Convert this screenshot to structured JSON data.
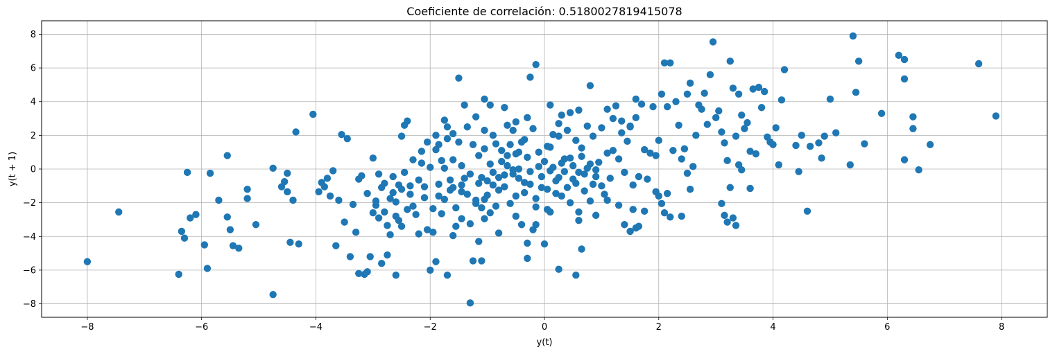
{
  "chart_data": {
    "type": "scatter",
    "title": "Coeficiente de correlación: 0.5180027819415078",
    "xlabel": "y(t)",
    "ylabel": "y(t + 1)",
    "xlim": [
      -8.8,
      8.8
    ],
    "ylim": [
      -8.8,
      8.8
    ],
    "xticks": [
      -8,
      -6,
      -4,
      -2,
      0,
      2,
      4,
      6,
      8
    ],
    "yticks": [
      -8,
      -6,
      -4,
      -2,
      0,
      2,
      4,
      6,
      8
    ],
    "grid": true,
    "marker_color": "#1f77b4",
    "points": [
      [
        -8.0,
        -5.5
      ],
      [
        -7.45,
        -2.55
      ],
      [
        -6.4,
        -6.25
      ],
      [
        -6.35,
        -3.7
      ],
      [
        -6.3,
        -4.1
      ],
      [
        -6.25,
        -0.2
      ],
      [
        -6.2,
        -2.9
      ],
      [
        -6.1,
        -2.7
      ],
      [
        -5.95,
        -4.5
      ],
      [
        -5.9,
        -5.9
      ],
      [
        -5.85,
        -0.25
      ],
      [
        -5.7,
        -1.85
      ],
      [
        -5.55,
        0.8
      ],
      [
        -5.55,
        -2.85
      ],
      [
        -5.5,
        -3.6
      ],
      [
        -5.45,
        -4.55
      ],
      [
        -5.35,
        -4.7
      ],
      [
        -5.2,
        -1.2
      ],
      [
        -5.2,
        -1.75
      ],
      [
        -5.05,
        -3.3
      ],
      [
        -4.75,
        -7.45
      ],
      [
        -4.75,
        0.05
      ],
      [
        -4.6,
        -1.05
      ],
      [
        -4.55,
        -0.75
      ],
      [
        -4.5,
        -0.25
      ],
      [
        -4.5,
        -1.35
      ],
      [
        -4.45,
        -4.35
      ],
      [
        -4.4,
        -1.85
      ],
      [
        -4.35,
        2.2
      ],
      [
        -4.3,
        -4.45
      ],
      [
        -4.05,
        3.25
      ],
      [
        -3.95,
        -1.35
      ],
      [
        -3.9,
        -0.8
      ],
      [
        -3.85,
        -1.05
      ],
      [
        -3.8,
        -0.55
      ],
      [
        -3.75,
        -1.6
      ],
      [
        -3.7,
        -0.1
      ],
      [
        -3.65,
        -4.55
      ],
      [
        -3.6,
        -1.85
      ],
      [
        -3.55,
        2.05
      ],
      [
        -3.5,
        -3.15
      ],
      [
        -3.45,
        1.8
      ],
      [
        -3.4,
        -5.2
      ],
      [
        -3.35,
        -2.1
      ],
      [
        -3.3,
        -3.75
      ],
      [
        -3.25,
        -6.2
      ],
      [
        -3.25,
        -0.6
      ],
      [
        -3.2,
        -0.4
      ],
      [
        -3.15,
        -6.25
      ],
      [
        -3.1,
        -1.45
      ],
      [
        -3.1,
        -6.1
      ],
      [
        -3.05,
        -5.2
      ],
      [
        -3.0,
        0.65
      ],
      [
        -2.95,
        -2.15
      ],
      [
        -2.9,
        -2.9
      ],
      [
        -2.85,
        -5.6
      ],
      [
        -2.8,
        -0.85
      ],
      [
        -2.75,
        -5.1
      ],
      [
        -2.65,
        -1.4
      ],
      [
        -2.6,
        -2.8
      ],
      [
        -2.55,
        -0.95
      ],
      [
        -2.5,
        1.95
      ],
      [
        -2.45,
        2.6
      ],
      [
        -2.4,
        2.85
      ],
      [
        -2.35,
        -1.0
      ],
      [
        -2.3,
        -2.2
      ],
      [
        -2.2,
        -3.85
      ],
      [
        -2.15,
        1.05
      ],
      [
        -2.1,
        -1.05
      ],
      [
        -2.05,
        -3.6
      ],
      [
        -2.0,
        -6.0
      ],
      [
        -1.95,
        -3.75
      ],
      [
        -1.9,
        -5.5
      ],
      [
        -1.85,
        -1.6
      ],
      [
        -1.8,
        -2.65
      ],
      [
        -1.75,
        2.9
      ],
      [
        -1.7,
        -6.3
      ],
      [
        -1.65,
        -1.25
      ],
      [
        -1.6,
        -1.1
      ],
      [
        -1.55,
        -3.4
      ],
      [
        -1.5,
        5.4
      ],
      [
        -1.45,
        -2.95
      ],
      [
        -1.4,
        -0.55
      ],
      [
        -1.35,
        -1.5
      ],
      [
        -1.3,
        -7.95
      ],
      [
        -1.25,
        -5.45
      ],
      [
        -1.2,
        -1.85
      ],
      [
        -1.15,
        -0.85
      ],
      [
        -1.1,
        -2.3
      ],
      [
        -1.05,
        -1.8
      ],
      [
        -1.0,
        -0.7
      ],
      [
        -0.95,
        -2.6
      ],
      [
        -0.9,
        -0.95
      ],
      [
        -0.85,
        -2.2
      ],
      [
        -0.8,
        -3.8
      ],
      [
        -0.75,
        1.1
      ],
      [
        -0.7,
        -1.05
      ],
      [
        -0.65,
        0.2
      ],
      [
        -0.6,
        1.45
      ],
      [
        -0.55,
        -0.3
      ],
      [
        -0.5,
        -1.6
      ],
      [
        -0.45,
        1.0
      ],
      [
        -0.4,
        -3.3
      ],
      [
        -0.35,
        -0.8
      ],
      [
        -0.3,
        -4.4
      ],
      [
        -0.25,
        -0.9
      ],
      [
        -0.2,
        -3.6
      ],
      [
        -0.15,
        -3.3
      ],
      [
        -0.1,
        0.15
      ],
      [
        -0.05,
        -1.1
      ],
      [
        0.0,
        0.45
      ],
      [
        0.05,
        -2.4
      ],
      [
        0.1,
        1.3
      ],
      [
        0.15,
        2.05
      ],
      [
        0.2,
        -0.7
      ],
      [
        0.25,
        1.95
      ],
      [
        0.3,
        -1.6
      ],
      [
        0.35,
        0.6
      ],
      [
        0.4,
        2.3
      ],
      [
        0.45,
        -2.0
      ],
      [
        0.5,
        0.2
      ],
      [
        0.55,
        1.7
      ],
      [
        0.6,
        -2.55
      ],
      [
        0.65,
        0.75
      ],
      [
        0.7,
        -0.3
      ],
      [
        0.75,
        2.55
      ],
      [
        0.8,
        -1.9
      ],
      [
        0.85,
        1.95
      ],
      [
        0.9,
        -0.05
      ],
      [
        0.95,
        0.4
      ],
      [
        1.0,
        2.45
      ],
      [
        1.05,
        -1.5
      ],
      [
        1.1,
        0.95
      ],
      [
        1.15,
        -0.55
      ],
      [
        1.2,
        1.1
      ],
      [
        1.25,
        3.75
      ],
      [
        1.3,
        0.6
      ],
      [
        1.35,
        2.15
      ],
      [
        1.4,
        -0.2
      ],
      [
        1.45,
        1.65
      ],
      [
        1.5,
        2.55
      ],
      [
        1.55,
        -0.95
      ],
      [
        1.6,
        4.15
      ],
      [
        1.65,
        -0.45
      ],
      [
        1.7,
        3.85
      ],
      [
        1.75,
        1.15
      ],
      [
        1.8,
        -0.6
      ],
      [
        1.85,
        0.95
      ],
      [
        1.9,
        3.7
      ],
      [
        1.95,
        0.8
      ],
      [
        -1.9,
        1.15
      ],
      [
        -1.8,
        0.5
      ],
      [
        -1.7,
        1.8
      ],
      [
        -1.6,
        2.1
      ],
      [
        -1.5,
        1.6
      ],
      [
        -1.45,
        0.2
      ],
      [
        -1.35,
        2.5
      ],
      [
        -1.25,
        1.45
      ],
      [
        -1.15,
        0.8
      ],
      [
        -1.05,
        1.2
      ],
      [
        -0.95,
        0.3
      ],
      [
        -0.9,
        2.0
      ],
      [
        -0.85,
        1.5
      ],
      [
        -0.75,
        0.45
      ],
      [
        -0.65,
        2.6
      ],
      [
        -0.55,
        2.3
      ],
      [
        -0.5,
        0.9
      ],
      [
        -0.4,
        1.6
      ],
      [
        -0.3,
        0.7
      ],
      [
        -0.2,
        2.4
      ],
      [
        -0.1,
        1.0
      ],
      [
        0.05,
        1.35
      ],
      [
        0.15,
        0.1
      ],
      [
        0.25,
        -0.5
      ],
      [
        0.35,
        -0.15
      ],
      [
        0.45,
        0.65
      ],
      [
        0.55,
        -0.85
      ],
      [
        0.65,
        1.25
      ],
      [
        0.75,
        0.05
      ],
      [
        0.85,
        -0.9
      ],
      [
        -1.95,
        -2.35
      ],
      [
        -1.85,
        -0.9
      ],
      [
        -1.75,
        -1.8
      ],
      [
        -1.65,
        -0.65
      ],
      [
        -1.55,
        -2.3
      ],
      [
        -1.45,
        -1.35
      ],
      [
        -1.3,
        -0.3
      ],
      [
        -1.2,
        -2.05
      ],
      [
        -1.1,
        -0.5
      ],
      [
        -1.0,
        -1.55
      ],
      [
        -0.9,
        -0.2
      ],
      [
        -0.8,
        -1.25
      ],
      [
        -0.7,
        -0.35
      ],
      [
        -0.6,
        -2.05
      ],
      [
        -0.45,
        -0.55
      ],
      [
        -0.35,
        -1.4
      ],
      [
        -0.25,
        -0.15
      ],
      [
        -0.15,
        -1.75
      ],
      [
        -0.05,
        -0.45
      ],
      [
        0.05,
        -1.2
      ],
      [
        0.1,
        -0.1
      ],
      [
        0.2,
        -1.45
      ],
      [
        0.3,
        0.35
      ],
      [
        0.4,
        -1.1
      ],
      [
        0.5,
        -0.6
      ],
      [
        0.6,
        -0.2
      ],
      [
        0.7,
        -1.3
      ],
      [
        0.8,
        0.3
      ],
      [
        0.9,
        -0.45
      ],
      [
        1.0,
        -1.0
      ],
      [
        -2.0,
        0.1
      ],
      [
        -2.05,
        1.6
      ],
      [
        -2.1,
        -1.7
      ],
      [
        -2.15,
        0.35
      ],
      [
        -2.2,
        -0.65
      ],
      [
        -2.25,
        -2.7
      ],
      [
        -2.3,
        0.55
      ],
      [
        -2.35,
        -1.5
      ],
      [
        -2.4,
        -2.4
      ],
      [
        -2.45,
        -0.2
      ],
      [
        -2.5,
        -1.2
      ],
      [
        -2.55,
        -3.05
      ],
      [
        -2.6,
        -1.95
      ],
      [
        -2.65,
        -0.45
      ],
      [
        -2.7,
        -1.75
      ],
      [
        -2.75,
        -3.35
      ],
      [
        -2.8,
        -2.55
      ],
      [
        -2.85,
        -1.1
      ],
      [
        -2.9,
        -0.3
      ],
      [
        -2.95,
        -1.9
      ],
      [
        -3.0,
        -2.6
      ],
      [
        -2.7,
        -3.9
      ],
      [
        -2.6,
        -6.3
      ],
      [
        -2.5,
        -3.4
      ],
      [
        -1.4,
        3.8
      ],
      [
        -1.2,
        3.1
      ],
      [
        -1.05,
        4.15
      ],
      [
        -0.95,
        3.8
      ],
      [
        -0.7,
        3.65
      ],
      [
        -0.5,
        2.8
      ],
      [
        -0.3,
        3.05
      ],
      [
        -0.25,
        5.45
      ],
      [
        -0.15,
        6.2
      ],
      [
        0.1,
        3.8
      ],
      [
        0.3,
        3.2
      ],
      [
        0.45,
        3.35
      ],
      [
        0.6,
        3.5
      ],
      [
        0.8,
        4.95
      ],
      [
        1.1,
        3.55
      ],
      [
        1.2,
        3.0
      ],
      [
        1.35,
        2.85
      ],
      [
        1.5,
        2.5
      ],
      [
        1.6,
        3.05
      ],
      [
        2.0,
        1.7
      ],
      [
        2.05,
        4.45
      ],
      [
        2.1,
        6.3
      ],
      [
        2.15,
        3.7
      ],
      [
        2.2,
        6.3
      ],
      [
        2.25,
        1.1
      ],
      [
        2.3,
        4.0
      ],
      [
        2.35,
        2.6
      ],
      [
        2.4,
        0.6
      ],
      [
        2.45,
        1.2
      ],
      [
        2.5,
        4.45
      ],
      [
        2.55,
        5.1
      ],
      [
        2.6,
        0.15
      ],
      [
        2.65,
        2.0
      ],
      [
        2.7,
        3.8
      ],
      [
        2.75,
        3.55
      ],
      [
        2.8,
        4.5
      ],
      [
        2.85,
        2.65
      ],
      [
        2.9,
        5.6
      ],
      [
        2.95,
        7.55
      ],
      [
        3.0,
        3.05
      ],
      [
        3.05,
        3.45
      ],
      [
        3.1,
        2.2
      ],
      [
        3.15,
        1.55
      ],
      [
        3.2,
        0.5
      ],
      [
        3.25,
        6.4
      ],
      [
        3.3,
        4.8
      ],
      [
        3.35,
        1.95
      ],
      [
        3.4,
        4.45
      ],
      [
        3.45,
        3.2
      ],
      [
        3.5,
        2.4
      ],
      [
        3.55,
        2.75
      ],
      [
        3.6,
        1.05
      ],
      [
        3.65,
        4.75
      ],
      [
        3.7,
        0.9
      ],
      [
        3.75,
        4.85
      ],
      [
        3.8,
        3.65
      ],
      [
        3.85,
        4.6
      ],
      [
        3.9,
        1.9
      ],
      [
        3.95,
        1.6
      ],
      [
        4.0,
        1.45
      ],
      [
        4.05,
        2.45
      ],
      [
        4.1,
        0.25
      ],
      [
        4.15,
        4.1
      ],
      [
        4.2,
        5.9
      ],
      [
        4.4,
        1.4
      ],
      [
        4.45,
        -0.15
      ],
      [
        4.5,
        2.0
      ],
      [
        4.6,
        -2.5
      ],
      [
        4.65,
        1.35
      ],
      [
        4.8,
        1.55
      ],
      [
        4.85,
        0.65
      ],
      [
        4.9,
        1.95
      ],
      [
        5.0,
        4.15
      ],
      [
        5.1,
        2.15
      ],
      [
        5.35,
        0.25
      ],
      [
        5.4,
        7.9
      ],
      [
        5.45,
        4.55
      ],
      [
        5.5,
        6.4
      ],
      [
        5.6,
        1.5
      ],
      [
        5.9,
        3.3
      ],
      [
        6.2,
        6.75
      ],
      [
        6.3,
        6.5
      ],
      [
        6.3,
        0.55
      ],
      [
        6.3,
        5.35
      ],
      [
        6.45,
        3.1
      ],
      [
        6.45,
        2.4
      ],
      [
        6.55,
        -0.05
      ],
      [
        6.75,
        1.45
      ],
      [
        7.6,
        6.25
      ],
      [
        7.9,
        3.15
      ],
      [
        2.0,
        -1.6
      ],
      [
        2.05,
        -2.05
      ],
      [
        2.1,
        -2.6
      ],
      [
        2.15,
        -1.45
      ],
      [
        2.2,
        -2.85
      ],
      [
        2.4,
        -2.8
      ],
      [
        2.5,
        -0.25
      ],
      [
        2.55,
        -1.2
      ],
      [
        3.1,
        -2.05
      ],
      [
        3.15,
        -2.75
      ],
      [
        3.2,
        -3.15
      ],
      [
        3.25,
        -1.1
      ],
      [
        3.3,
        -2.9
      ],
      [
        3.35,
        -3.35
      ],
      [
        3.4,
        0.25
      ],
      [
        3.45,
        -0.05
      ],
      [
        3.6,
        -1.15
      ],
      [
        1.4,
        -3.3
      ],
      [
        1.5,
        -3.7
      ],
      [
        1.55,
        -2.4
      ],
      [
        1.6,
        -3.5
      ],
      [
        1.65,
        -3.4
      ],
      [
        1.75,
        -2.5
      ],
      [
        1.95,
        -1.35
      ],
      [
        1.3,
        -2.15
      ],
      [
        1.1,
        -1.85
      ],
      [
        0.9,
        -2.75
      ],
      [
        0.6,
        -3.05
      ],
      [
        0.55,
        -6.3
      ],
      [
        0.65,
        -4.75
      ],
      [
        0.25,
        -5.95
      ],
      [
        0.0,
        -4.45
      ],
      [
        -0.3,
        -5.3
      ],
      [
        -0.5,
        -2.8
      ],
      [
        -0.45,
        0.0
      ],
      [
        -1.05,
        -2.95
      ],
      [
        -1.1,
        -5.45
      ],
      [
        -1.15,
        -4.3
      ],
      [
        -1.3,
        -3.25
      ],
      [
        -1.6,
        -3.95
      ],
      [
        -0.15,
        -2.25
      ],
      [
        0.1,
        -2.55
      ],
      [
        -0.55,
        -0.05
      ],
      [
        -0.65,
        0.8
      ],
      [
        -0.8,
        -0.5
      ],
      [
        -1.45,
        -0.95
      ],
      [
        -1.6,
        0.55
      ],
      [
        -1.75,
        0.05
      ],
      [
        -1.85,
        1.45
      ],
      [
        -1.9,
        2.0
      ],
      [
        -1.7,
        2.5
      ],
      [
        -1.05,
        2.3
      ],
      [
        -0.35,
        1.75
      ],
      [
        0.25,
        2.7
      ]
    ]
  }
}
